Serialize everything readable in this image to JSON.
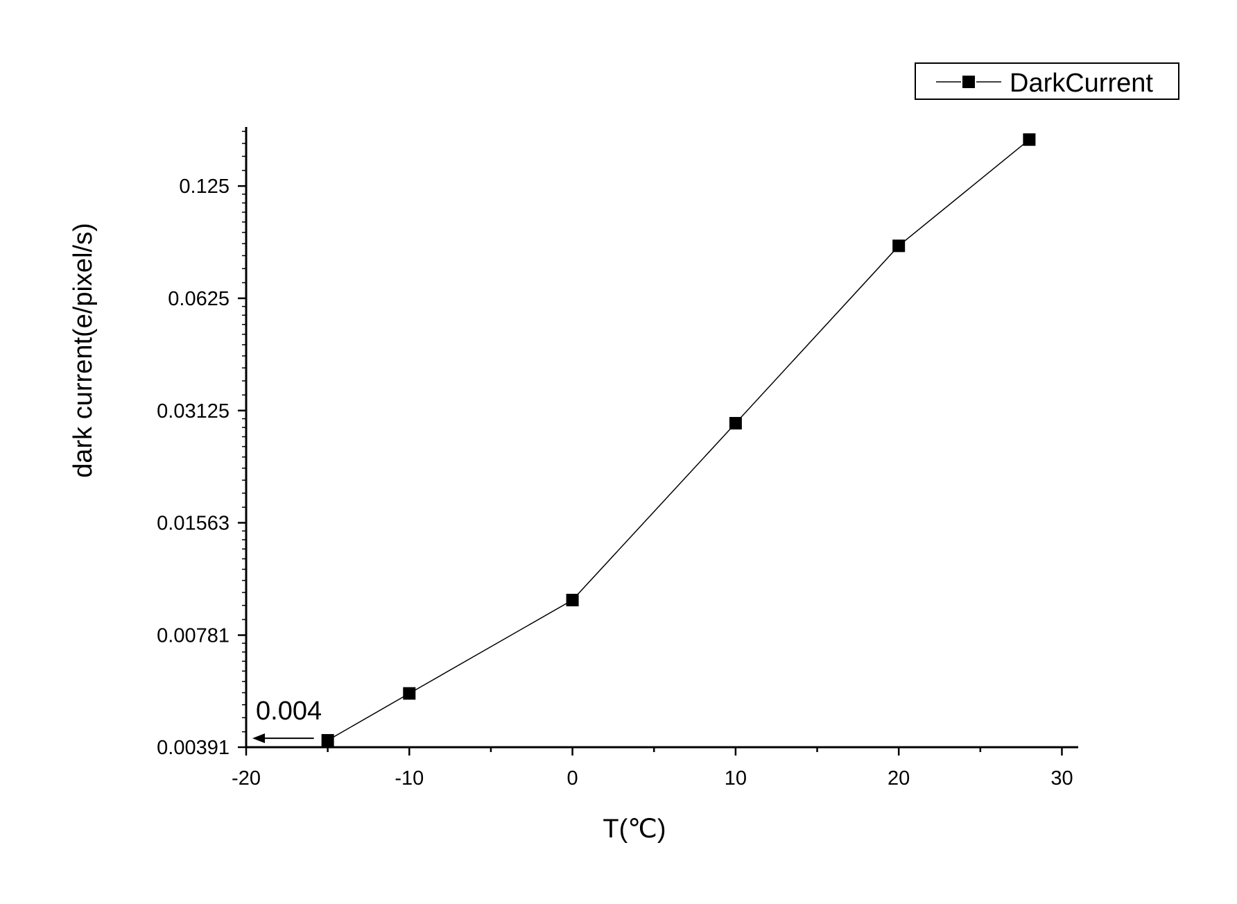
{
  "chart_data": {
    "type": "line",
    "title": "",
    "xlabel": "T(℃)",
    "ylabel": "dark current(e/pixel/s)",
    "x_scale": "linear",
    "y_scale": "log2",
    "xlim": [
      -20,
      31
    ],
    "ylim": [
      0.00391,
      0.18
    ],
    "x_ticks": [
      -20,
      -10,
      0,
      10,
      20,
      30
    ],
    "x_tick_labels": [
      "-20",
      "-10",
      "0",
      "10",
      "20",
      "30"
    ],
    "y_ticks": [
      0.00391,
      0.00781,
      0.01563,
      0.03125,
      0.0625,
      0.125
    ],
    "y_tick_labels": [
      "0.00391",
      "0.00781",
      "0.01563",
      "0.03125",
      "0.0625",
      "0.125"
    ],
    "grid": false,
    "legend_position": "top-right",
    "series": [
      {
        "name": "DarkCurrent",
        "marker": "square",
        "color": "#000000",
        "x": [
          -15,
          -10,
          0,
          10,
          20,
          28
        ],
        "y": [
          0.00408,
          0.00545,
          0.0097,
          0.0289,
          0.0864,
          0.1665
        ]
      }
    ],
    "annotations": [
      {
        "text": "0.004",
        "arrow": "left",
        "x": -15,
        "y": 0.00408
      }
    ]
  }
}
